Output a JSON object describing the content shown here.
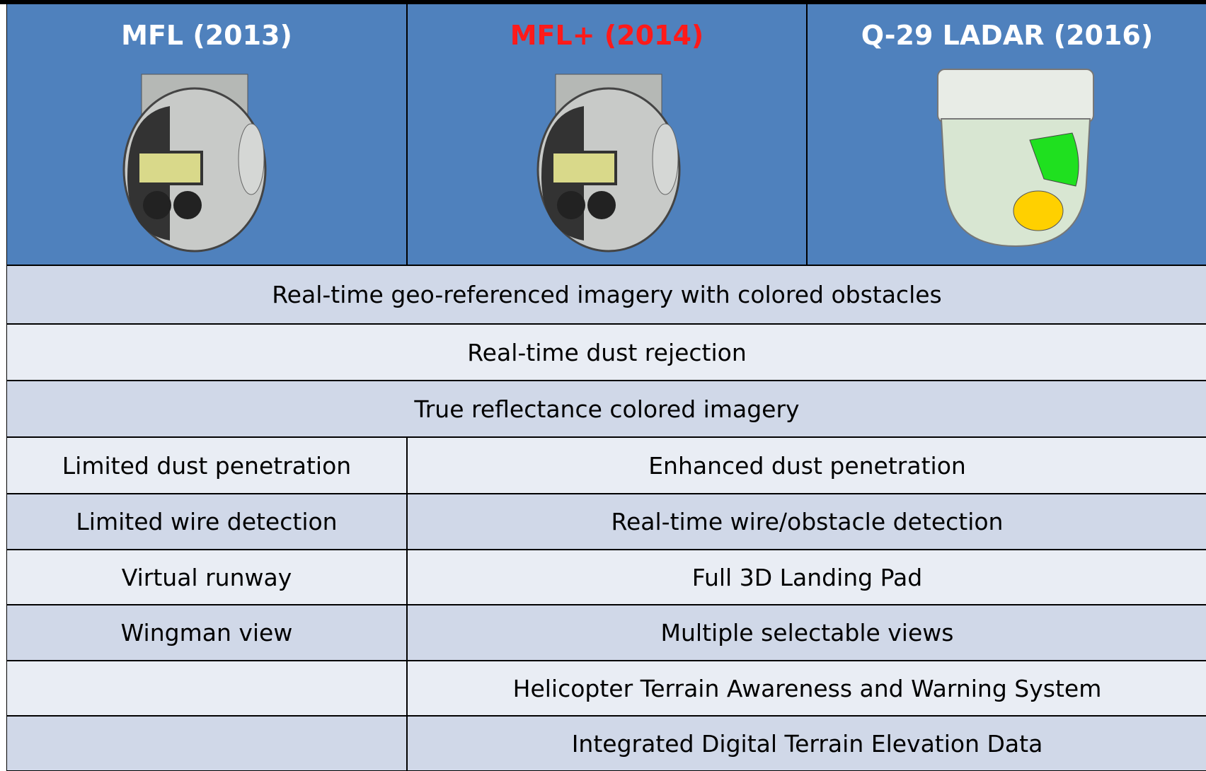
{
  "table": {
    "header": [
      {
        "label": "MFL (2013)",
        "color": "#ffffff"
      },
      {
        "label": "MFL+ (2014)",
        "color": "#ff1a1a"
      },
      {
        "label": "Q-29 LADAR (2016)",
        "color": "#ffffff"
      }
    ],
    "rows": [
      {
        "all": "Real-time geo-referenced imagery with colored obstacles"
      },
      {
        "all": "Real-time dust rejection"
      },
      {
        "all": "True reflectance colored imagery"
      },
      {
        "left": "Limited dust penetration",
        "right": "Enhanced dust penetration"
      },
      {
        "left": "Limited wire detection",
        "right": "Real-time wire/obstacle detection"
      },
      {
        "left": "Virtual runway",
        "right": "Full 3D Landing Pad"
      },
      {
        "left": "Wingman view",
        "right": "Multiple selectable views"
      },
      {
        "right": "Helicopter Terrain Awareness and Warning System"
      },
      {
        "right": "Integrated Digital Terrain Elevation Data"
      }
    ]
  }
}
